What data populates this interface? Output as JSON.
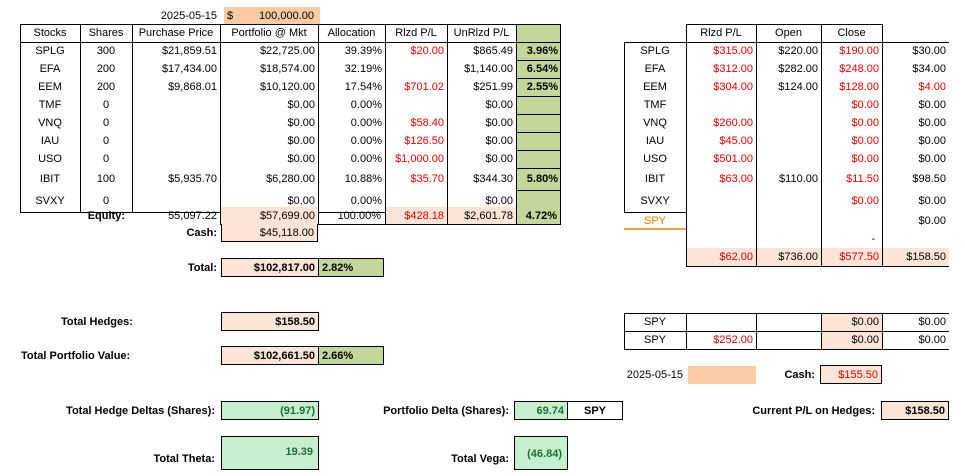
{
  "header": {
    "date": "2025-05-15",
    "currency_symbol": "$",
    "capital": "100,000.00"
  },
  "stocks_table": {
    "headers": [
      "Stocks",
      "Shares",
      "Purchase Price",
      "Portfolio @ Mkt",
      "Allocation",
      "Rlzd P/L",
      "UnRlzd P/L"
    ],
    "rows": [
      {
        "ticker": "SPLG",
        "shares": "300",
        "purchase": "$21,859.51",
        "mkt": "$22,725.00",
        "alloc": "39.39%",
        "rlzd": "$20.00",
        "unrlzd": "$865.49",
        "pct": "3.96%"
      },
      {
        "ticker": "EFA",
        "shares": "200",
        "purchase": "$17,434.00",
        "mkt": "$18,574.00",
        "alloc": "32.19%",
        "rlzd": "",
        "unrlzd": "$1,140.00",
        "pct": "6.54%"
      },
      {
        "ticker": "EEM",
        "shares": "200",
        "purchase": "$9,868.01",
        "mkt": "$10,120.00",
        "alloc": "17.54%",
        "rlzd": "$701.02",
        "unrlzd": "$251.99",
        "pct": "2.55%"
      },
      {
        "ticker": "TMF",
        "shares": "0",
        "purchase": "",
        "mkt": "$0.00",
        "alloc": "0.00%",
        "rlzd": "",
        "unrlzd": "$0.00",
        "pct": ""
      },
      {
        "ticker": "VNQ",
        "shares": "0",
        "purchase": "",
        "mkt": "$0.00",
        "alloc": "0.00%",
        "rlzd": "$58.40",
        "unrlzd": "$0.00",
        "pct": ""
      },
      {
        "ticker": "IAU",
        "shares": "0",
        "purchase": "",
        "mkt": "$0.00",
        "alloc": "0.00%",
        "rlzd": "$126.50",
        "unrlzd": "$0.00",
        "pct": ""
      },
      {
        "ticker": "USO",
        "shares": "0",
        "purchase": "",
        "mkt": "$0.00",
        "alloc": "0.00%",
        "rlzd": "$1,000.00",
        "unrlzd": "$0.00",
        "pct": ""
      },
      {
        "ticker": "IBIT",
        "shares": "100",
        "purchase": "$5,935.70",
        "mkt": "$6,280.00",
        "alloc": "10.88%",
        "rlzd": "$35.70",
        "unrlzd": "$344.30",
        "pct": "5.80%"
      },
      {
        "ticker": "SVXY",
        "shares": "0",
        "purchase": "",
        "mkt": "$0.00",
        "alloc": "0.00%",
        "rlzd": "",
        "unrlzd": "$0.00",
        "pct": ""
      }
    ],
    "equity": {
      "label": "Equity:",
      "purchase": "55,097.22",
      "mkt": "$57,699.00",
      "alloc": "100.00%",
      "rlzd": "$428.18",
      "unrlzd": "$2,601.78",
      "pct": "4.72%"
    },
    "cash": {
      "label": "Cash:",
      "value": "$45,118.00"
    },
    "total": {
      "label": "Total:",
      "value": "$102,817.00",
      "pct": "2.82%"
    }
  },
  "hedges_table": {
    "headers": [
      "Rlzd P/L",
      "Open",
      "Close"
    ],
    "rows": [
      {
        "ticker": "SPLG",
        "rlzd": "$315.00",
        "open": "$220.00",
        "close": "$190.00",
        "net": "$30.00"
      },
      {
        "ticker": "EFA",
        "rlzd": "$312.00",
        "open": "$282.00",
        "close": "$248.00",
        "net": "$34.00"
      },
      {
        "ticker": "EEM",
        "rlzd": "$304.00",
        "open": "$124.00",
        "close": "$128.00",
        "net": "$4.00"
      },
      {
        "ticker": "TMF",
        "rlzd": "",
        "open": "",
        "close": "$0.00",
        "net": "$0.00"
      },
      {
        "ticker": "VNQ",
        "rlzd": "$260.00",
        "open": "",
        "close": "$0.00",
        "net": "$0.00"
      },
      {
        "ticker": "IAU",
        "rlzd": "$45.00",
        "open": "",
        "close": "$0.00",
        "net": "$0.00"
      },
      {
        "ticker": "USO",
        "rlzd": "$501.00",
        "open": "",
        "close": "$0.00",
        "net": "$0.00"
      },
      {
        "ticker": "IBIT",
        "rlzd": "$63.00",
        "open": "$110.00",
        "close": "$11.50",
        "net": "$98.50"
      },
      {
        "ticker": "SVXY",
        "rlzd": "",
        "open": "",
        "close": "$0.00",
        "net": "$0.00"
      }
    ],
    "spy_row": {
      "ticker": "SPY",
      "close": "",
      "net": "$0.00"
    },
    "dash_row": {
      "close": "-"
    },
    "totals": {
      "rlzd": "$62.00",
      "open": "$736.00",
      "close": "$577.50",
      "net": "$158.50"
    }
  },
  "spy_hedges": [
    {
      "ticker": "SPY",
      "rlzd": "",
      "close": "$0.00",
      "net": "$0.00"
    },
    {
      "ticker": "SPY",
      "rlzd": "$252.00",
      "close": "$0.00",
      "net": "$0.00"
    }
  ],
  "hedge_cash": {
    "date": "2025-05-15",
    "label": "Cash:",
    "value": "$155.50"
  },
  "summary": {
    "total_hedges_label": "Total Hedges:",
    "total_hedges": "$158.50",
    "total_portfolio_label": "Total Portfolio Value:",
    "total_portfolio": "$102,661.50",
    "total_portfolio_pct": "2.66%",
    "hedge_deltas_label": "Total Hedge Deltas (Shares):",
    "hedge_deltas": "(91.97)",
    "portfolio_delta_label": "Portfolio Delta (Shares):",
    "portfolio_delta": "69.74",
    "portfolio_delta_ticker": "SPY",
    "current_pl_label": "Current P/L on Hedges:",
    "current_pl": "$158.50",
    "theta_label": "Total Theta:",
    "theta": "19.39",
    "vega_label": "Total Vega:",
    "vega": "(46.84)"
  }
}
